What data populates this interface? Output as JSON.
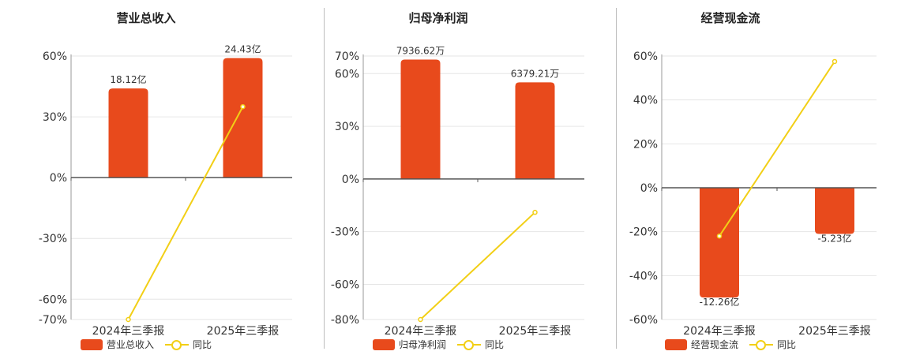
{
  "chart_data": [
    {
      "type": "bar",
      "title": "营业总收入",
      "categories": [
        "2024年三季报",
        "2025年三季报"
      ],
      "series": [
        {
          "name": "营业总收入",
          "type": "bar",
          "values": [
            44,
            59
          ],
          "labels": [
            "18.12亿",
            "24.43亿"
          ]
        },
        {
          "name": "同比",
          "type": "line",
          "values": [
            -70,
            35
          ]
        }
      ],
      "ylim": [
        -70,
        60
      ],
      "yticks": [
        "60%",
        "30%",
        "0%",
        "-30%",
        "-60%",
        "-70%"
      ],
      "ytick_values": [
        60,
        30,
        0,
        -30,
        -60,
        -70
      ]
    },
    {
      "type": "bar",
      "title": "归母净利润",
      "categories": [
        "2024年三季报",
        "2025年三季报"
      ],
      "series": [
        {
          "name": "归母净利润",
          "type": "bar",
          "values": [
            68,
            55
          ],
          "labels": [
            "7936.62万",
            "6379.21万"
          ]
        },
        {
          "name": "同比",
          "type": "line",
          "values": [
            -80,
            -19
          ]
        }
      ],
      "ylim": [
        -80,
        70
      ],
      "yticks": [
        "70%",
        "60%",
        "30%",
        "0%",
        "-30%",
        "-60%",
        "-80%"
      ],
      "ytick_values": [
        70,
        60,
        30,
        0,
        -30,
        -60,
        -80
      ]
    },
    {
      "type": "bar",
      "title": "经营现金流",
      "categories": [
        "2024年三季报",
        "2025年三季报"
      ],
      "series": [
        {
          "name": "经营现金流",
          "type": "bar",
          "values": [
            -50,
            -21
          ],
          "labels": [
            "-12.26亿",
            "-5.23亿"
          ]
        },
        {
          "name": "同比",
          "type": "line",
          "values": [
            -22,
            57.5
          ]
        }
      ],
      "ylim": [
        -60,
        60
      ],
      "yticks": [
        "60%",
        "40%",
        "20%",
        "0%",
        "-20%",
        "-40%",
        "-60%"
      ],
      "ytick_values": [
        60,
        40,
        20,
        0,
        -20,
        -40,
        -60
      ]
    }
  ],
  "colors": {
    "bar": "#e84a1c",
    "line": "#f2cf16",
    "grid": "#e6e6e6",
    "axis": "#555555"
  }
}
